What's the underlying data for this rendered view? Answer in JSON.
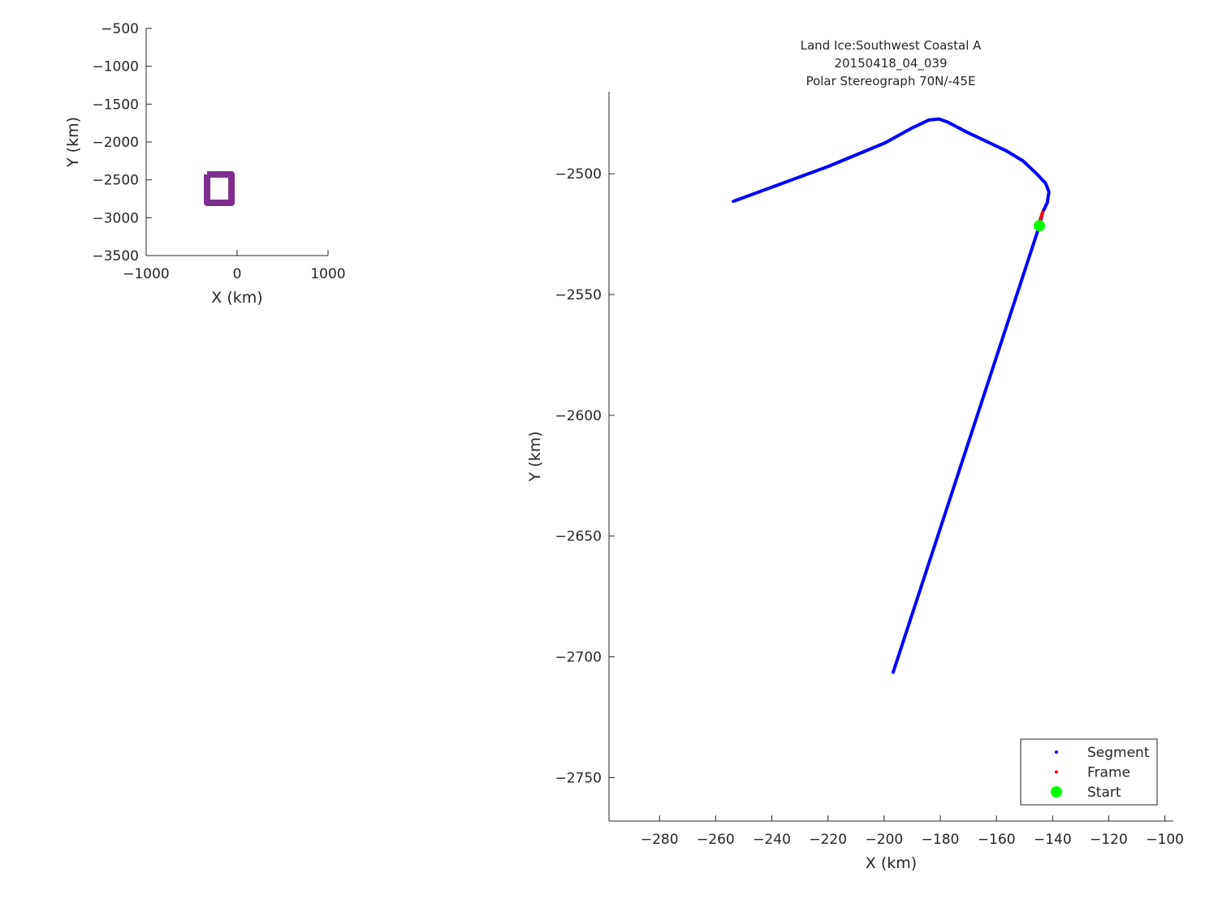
{
  "chart_data": [
    {
      "type": "line",
      "xlabel": "X (km)",
      "ylabel": "Y (km)",
      "xlim": [
        -1000,
        1000
      ],
      "ylim": [
        -3500,
        -500
      ],
      "xticks": [
        -1000,
        0,
        1000
      ],
      "yticks": [
        -500,
        -1000,
        -1500,
        -2000,
        -2500,
        -3000,
        -3500
      ],
      "grid": false,
      "series": [
        {
          "color": "#7e2f8e",
          "x": [
            -330,
            -62,
            -62,
            -330,
            -330
          ],
          "y": [
            -2428,
            -2428,
            -2803,
            -2803,
            -2428
          ]
        }
      ]
    },
    {
      "type": "line",
      "title": [
        "Land Ice:Southwest Coastal A",
        "20150418_04_039",
        "Polar Stereograph 70N/-45E"
      ],
      "xlabel": "X (km)",
      "ylabel": "Y (km)",
      "xlim": [
        -298,
        -97
      ],
      "ylim": [
        -2768,
        -2466
      ],
      "xticks": [
        -280,
        -260,
        -240,
        -220,
        -200,
        -180,
        -160,
        -140,
        -120,
        -100
      ],
      "yticks": [
        -2500,
        -2550,
        -2600,
        -2650,
        -2700,
        -2750
      ],
      "grid": false,
      "legend_position": "bottom-right",
      "series": [
        {
          "name": "Segment",
          "color": "#0000ff",
          "x": [
            -253.7,
            -220,
            -199.7,
            -190,
            -184,
            -180.5,
            -177.5,
            -170.8,
            -156.3,
            -150.5,
            -146.2,
            -142.5,
            -141.3,
            -141.9,
            -143.5,
            -144.7,
            -196.8
          ],
          "y": [
            -2511.4,
            -2497,
            -2487.2,
            -2481,
            -2477.7,
            -2477.3,
            -2478.5,
            -2482.6,
            -2490.6,
            -2494.7,
            -2499.4,
            -2503.9,
            -2507.5,
            -2512,
            -2515.8,
            -2521.5,
            -2706.4
          ]
        },
        {
          "name": "Frame",
          "color": "#ff0000",
          "x": [
            -143.5,
            -144.5
          ],
          "y": [
            -2515.8,
            -2519.2
          ]
        },
        {
          "name": "Start",
          "color": "#00ff00",
          "x": [
            -144.7
          ],
          "y": [
            -2521.5
          ]
        }
      ]
    }
  ]
}
